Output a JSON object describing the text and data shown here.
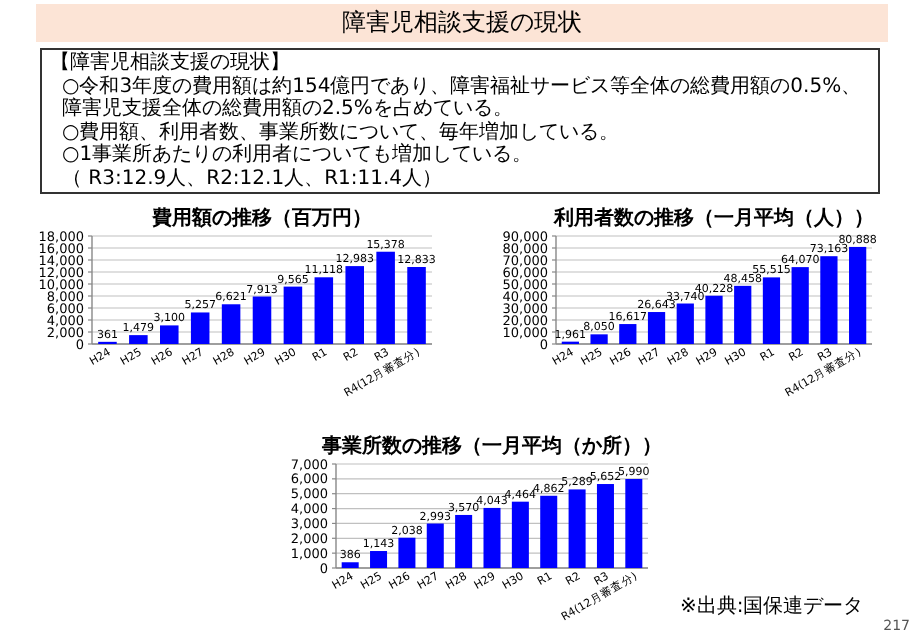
{
  "chart_data": [
    {
      "type": "other",
      "title": "障害児相談支援の現状",
      "annotations": [
        "【障害児相談支援の現状】",
        "○令和3年度の費用額は約154億円であり、障害福祉サービス等全体の総費用額の0.5%、障害児支援全体の総費用額の2.5%を占めている。",
        "○費用額、利用者数、事業所数について、毎年増加している。",
        "○1事業所あたりの利用者についても増加している。",
        "（ R3:12.9人、R2:12.1人、R1:11.4人）"
      ]
    },
    {
      "type": "bar",
      "title": "費用額の推移（百万円）",
      "categories": [
        "H24",
        "H25",
        "H26",
        "H27",
        "H28",
        "H29",
        "H30",
        "R1",
        "R2",
        "R3",
        "R4(12月審査分)"
      ],
      "values": [
        361,
        1479,
        3100,
        5257,
        6621,
        7913,
        9565,
        11118,
        12983,
        15378,
        12833
      ],
      "value_labels": [
        "361",
        "1,479",
        "3,100",
        "5,257",
        "6,621",
        "7,913",
        "9,565",
        "11,118",
        "12,983",
        "15,378",
        "12,833"
      ],
      "color": "#0000ff",
      "grid": "y",
      "ylim": [
        0,
        18000
      ],
      "yticks": [
        {
          "value": 0,
          "label": "0"
        },
        {
          "value": 2000,
          "label": "2,000"
        },
        {
          "value": 4000,
          "label": "4,000"
        },
        {
          "value": 6000,
          "label": "6,000"
        },
        {
          "value": 8000,
          "label": "8,000"
        },
        {
          "value": 10000,
          "label": "10,000"
        },
        {
          "value": 12000,
          "label": "12,000"
        },
        {
          "value": 14000,
          "label": "14,000"
        },
        {
          "value": 16000,
          "label": "16,000"
        },
        {
          "value": 18000,
          "label": "18,000"
        }
      ]
    },
    {
      "type": "bar",
      "title": "利用者数の推移（一月平均（人））",
      "categories": [
        "H24",
        "H25",
        "H26",
        "H27",
        "H28",
        "H29",
        "H30",
        "R1",
        "R2",
        "R3",
        "R4(12月審査分)"
      ],
      "values": [
        1961,
        8050,
        16617,
        26643,
        33740,
        40228,
        48458,
        55515,
        64070,
        73163,
        80888
      ],
      "value_labels": [
        "1,961",
        "8,050",
        "16,617",
        "26,643",
        "33,740",
        "40,228",
        "48,458",
        "55,515",
        "64,070",
        "73,163",
        "80,888"
      ],
      "color": "#0000ff",
      "grid": "y",
      "ylim": [
        0,
        90000
      ],
      "yticks": [
        {
          "value": 0,
          "label": "0"
        },
        {
          "value": 10000,
          "label": "10,000"
        },
        {
          "value": 20000,
          "label": "20,000"
        },
        {
          "value": 30000,
          "label": "30,000"
        },
        {
          "value": 40000,
          "label": "40,000"
        },
        {
          "value": 50000,
          "label": "50,000"
        },
        {
          "value": 60000,
          "label": "60,000"
        },
        {
          "value": 70000,
          "label": "70,000"
        },
        {
          "value": 80000,
          "label": "80,000"
        },
        {
          "value": 90000,
          "label": "90,000"
        }
      ]
    },
    {
      "type": "bar",
      "title": "事業所数の推移（一月平均（か所））",
      "categories": [
        "H24",
        "H25",
        "H26",
        "H27",
        "H28",
        "H29",
        "H30",
        "R1",
        "R2",
        "R3",
        "R4(12月審査分)"
      ],
      "values": [
        386,
        1143,
        2038,
        2993,
        3570,
        4043,
        4464,
        4862,
        5289,
        5652,
        5990
      ],
      "value_labels": [
        "386",
        "1,143",
        "2,038",
        "2,993",
        "3,570",
        "4,043",
        "4,464",
        "4,862",
        "5,289",
        "5,652",
        "5,990"
      ],
      "color": "#0000ff",
      "grid": "y",
      "ylim": [
        0,
        7000
      ],
      "yticks": [
        {
          "value": 0,
          "label": "0"
        },
        {
          "value": 1000,
          "label": "1,000"
        },
        {
          "value": 2000,
          "label": "2,000"
        },
        {
          "value": 3000,
          "label": "3,000"
        },
        {
          "value": 4000,
          "label": "4,000"
        },
        {
          "value": 5000,
          "label": "5,000"
        },
        {
          "value": 6000,
          "label": "6,000"
        },
        {
          "value": 7000,
          "label": "7,000"
        }
      ],
      "annotations": [
        "※出典:国保連データ",
        "217"
      ]
    }
  ]
}
